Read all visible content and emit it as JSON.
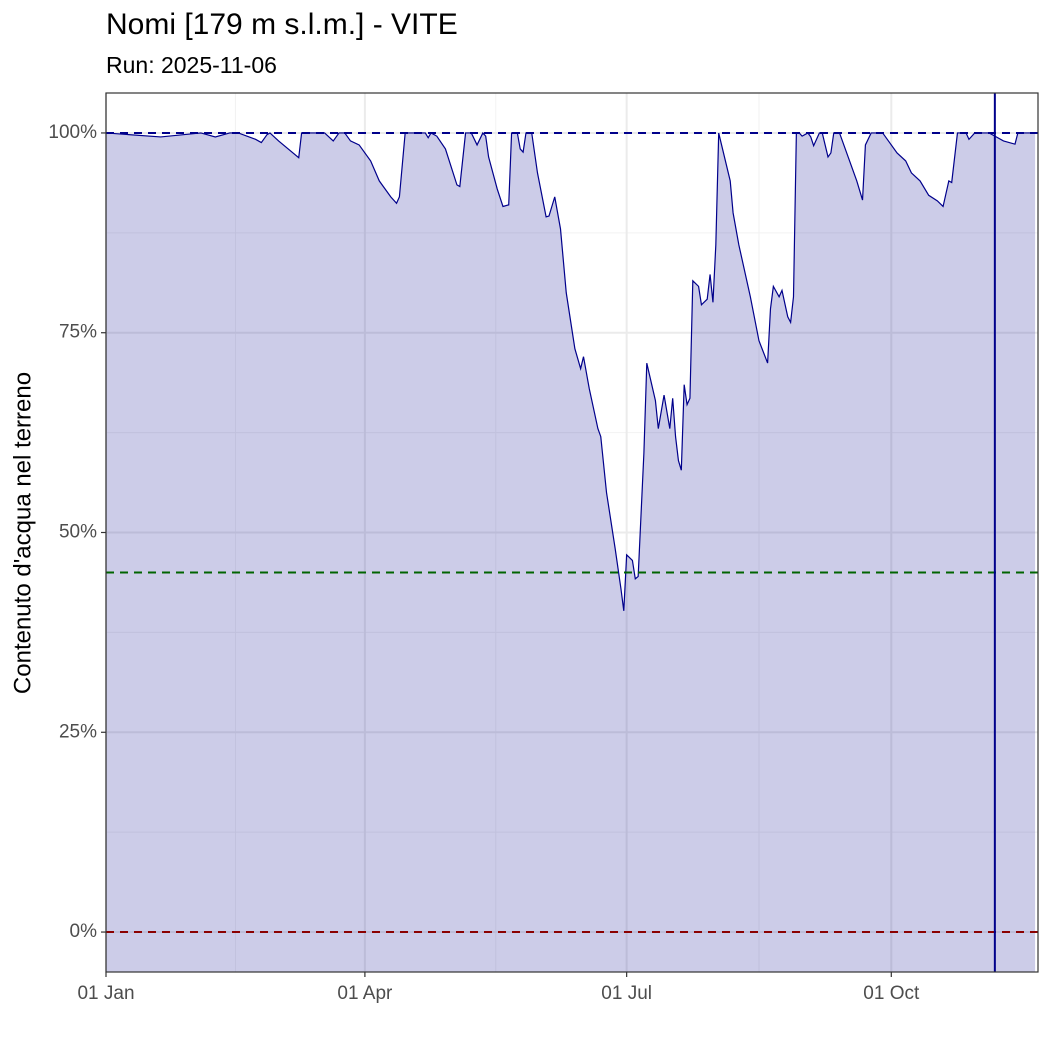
{
  "chart_data": {
    "type": "area",
    "title": "Nomi [179 m s.l.m.] - VITE",
    "subtitle": "Run: 2025-11-06",
    "y_label": "Contenuto d'acqua nel terreno",
    "x": [
      0,
      19,
      33,
      38,
      43,
      46,
      52,
      54,
      56,
      57,
      60,
      67,
      68,
      76,
      79,
      81,
      83,
      85,
      88,
      92,
      95,
      99,
      101,
      102,
      104,
      111,
      112,
      113,
      115,
      118,
      122,
      123,
      125,
      127,
      129,
      131,
      132,
      133,
      136,
      138,
      140,
      141,
      143,
      144,
      145,
      146,
      148,
      150,
      153,
      154,
      156,
      158,
      160,
      163,
      165,
      166,
      168,
      171,
      172,
      174,
      177,
      179,
      180,
      181,
      183,
      184,
      185,
      187,
      188,
      191,
      192,
      194,
      196,
      197,
      198,
      199,
      200,
      201,
      202,
      203,
      204,
      206,
      207,
      209,
      210,
      211,
      212,
      213,
      215,
      217,
      218,
      220,
      224,
      227,
      230,
      231,
      232,
      234,
      235,
      237,
      238,
      239,
      240,
      241,
      242,
      244,
      245,
      246,
      248,
      249,
      251,
      252,
      253,
      255,
      258,
      261,
      263,
      264,
      266,
      270,
      272,
      275,
      278,
      280,
      283,
      286,
      289,
      291,
      293,
      294,
      296,
      299,
      300,
      302,
      307,
      309,
      312,
      316,
      317,
      323
    ],
    "series": [
      {
        "name": "Contenuto d'acqua nel terreno",
        "color": "#00008b",
        "fill_opacity": 0.2,
        "values": [
          100,
          99.5,
          100,
          99.5,
          100,
          100,
          99.2,
          98.8,
          99.8,
          100,
          99,
          96.9,
          100,
          100,
          99,
          100,
          100,
          99,
          98.5,
          96.5,
          94,
          92,
          91.2,
          92,
          100,
          100,
          99.4,
          100,
          99.6,
          98,
          93.5,
          93.3,
          100,
          100,
          98.5,
          100,
          99.6,
          97,
          93,
          90.8,
          91,
          100,
          100,
          98,
          97.6,
          100,
          100,
          95,
          89.5,
          89.6,
          92,
          88,
          80,
          73,
          70.5,
          72,
          68,
          63,
          62,
          55,
          48,
          43,
          40.2,
          47.2,
          46.5,
          44.2,
          44.5,
          60,
          71.2,
          66.5,
          63,
          67.2,
          63,
          66.8,
          62,
          59,
          57.8,
          68.5,
          66,
          66.8,
          81.5,
          80.8,
          78.5,
          79.2,
          82.3,
          78.8,
          86,
          100,
          97,
          94,
          90,
          86,
          79.5,
          74,
          71.2,
          78,
          80.8,
          79.5,
          80.3,
          77,
          76.3,
          79.5,
          100,
          100,
          99.6,
          100,
          99.5,
          98.4,
          100,
          100,
          97,
          97.5,
          100,
          100,
          97,
          94,
          91.6,
          98.5,
          100,
          100,
          99,
          97.5,
          96.5,
          95,
          94,
          92.2,
          91.5,
          90.8,
          94,
          93.8,
          100,
          100,
          99.2,
          100,
          100,
          99.6,
          99,
          98.6,
          100,
          100
        ]
      }
    ],
    "xlim": [
      0,
      324
    ],
    "xticks": [
      {
        "value": 0,
        "label": "01 Jan"
      },
      {
        "value": 90,
        "label": "01 Apr"
      },
      {
        "value": 181,
        "label": "01 Jul"
      },
      {
        "value": 273,
        "label": "01 Oct"
      }
    ],
    "xminor": [
      45,
      135.5,
      227
    ],
    "ylim": [
      -5,
      105
    ],
    "yticks": [
      {
        "value": 0,
        "label": "0%"
      },
      {
        "value": 25,
        "label": "25%"
      },
      {
        "value": 50,
        "label": "50%"
      },
      {
        "value": 75,
        "label": "75%"
      },
      {
        "value": 100,
        "label": "100%"
      }
    ],
    "yminor": [
      12.5,
      37.5,
      62.5,
      87.5
    ],
    "grid": true,
    "hlines": [
      {
        "value": 100,
        "color": "#00008b"
      },
      {
        "value": 45,
        "color": "#006400"
      },
      {
        "value": 0,
        "color": "#8b0000"
      }
    ],
    "vline": {
      "value": 309,
      "color": "#00008b"
    }
  }
}
